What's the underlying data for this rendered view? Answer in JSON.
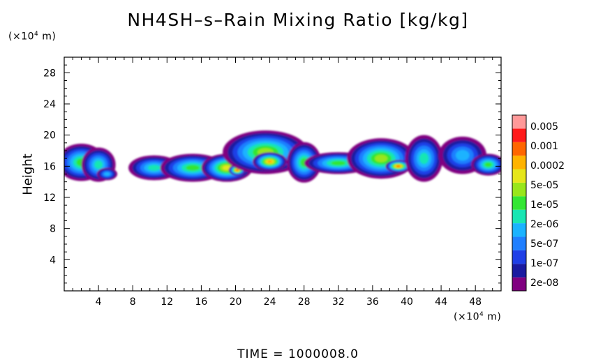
{
  "chart_data": {
    "type": "heatmap",
    "title": "NH4SH–s–Rain Mixing Ratio [kg/kg]",
    "ylabel": "Height",
    "y_unit": "(×10⁴ m)",
    "x_unit": "(×10⁴ m)",
    "footer": "TIME = 1000008.0",
    "xlim": [
      0,
      51
    ],
    "ylim": [
      0,
      30
    ],
    "xticks": [
      4,
      8,
      12,
      16,
      20,
      24,
      28,
      32,
      36,
      40,
      44,
      48
    ],
    "yticks": [
      4,
      8,
      12,
      16,
      20,
      24,
      28
    ],
    "legend": {
      "placement": "right",
      "levels": [
        "0.005",
        "0.001",
        "0.0002",
        "5e-05",
        "1e-05",
        "2e-06",
        "5e-07",
        "1e-07",
        "2e-08"
      ],
      "colors": [
        "#800080",
        "#1a1aa0",
        "#1f3fe6",
        "#1f7fff",
        "#1ab3ff",
        "#19e6b3",
        "#33e633",
        "#99e61a",
        "#e6e61a",
        "#ffb300",
        "#ff6600",
        "#ff1a1a",
        "#ff9999"
      ]
    },
    "cloud_blobs": [
      {
        "x": 2,
        "y": 16.5,
        "w": 2.8,
        "h": 2.4,
        "level": 6
      },
      {
        "x": 4,
        "y": 16.2,
        "w": 2,
        "h": 2.2,
        "level": 5
      },
      {
        "x": 5,
        "y": 15,
        "w": 1.2,
        "h": 0.8,
        "level": 4
      },
      {
        "x": 10.5,
        "y": 15.8,
        "w": 3,
        "h": 1.6,
        "level": 5
      },
      {
        "x": 15,
        "y": 15.8,
        "w": 3.8,
        "h": 1.8,
        "level": 6
      },
      {
        "x": 19,
        "y": 15.8,
        "w": 3,
        "h": 1.8,
        "level": 8
      },
      {
        "x": 20.2,
        "y": 15.5,
        "w": 1,
        "h": 0.7,
        "level": 10
      },
      {
        "x": 23.5,
        "y": 17.8,
        "w": 5,
        "h": 2.8,
        "level": 7
      },
      {
        "x": 24,
        "y": 16.6,
        "w": 2,
        "h": 1.2,
        "level": 9
      },
      {
        "x": 28,
        "y": 16.5,
        "w": 2,
        "h": 2.6,
        "level": 6
      },
      {
        "x": 32,
        "y": 16.4,
        "w": 4,
        "h": 1.4,
        "level": 6
      },
      {
        "x": 37,
        "y": 17,
        "w": 4,
        "h": 2.6,
        "level": 7
      },
      {
        "x": 39,
        "y": 16,
        "w": 1.5,
        "h": 0.8,
        "level": 10
      },
      {
        "x": 42,
        "y": 17,
        "w": 2.2,
        "h": 3,
        "level": 5
      },
      {
        "x": 46.5,
        "y": 17.4,
        "w": 2.8,
        "h": 2.4,
        "level": 4
      },
      {
        "x": 49.5,
        "y": 16.2,
        "w": 2,
        "h": 1.4,
        "level": 6
      }
    ]
  }
}
